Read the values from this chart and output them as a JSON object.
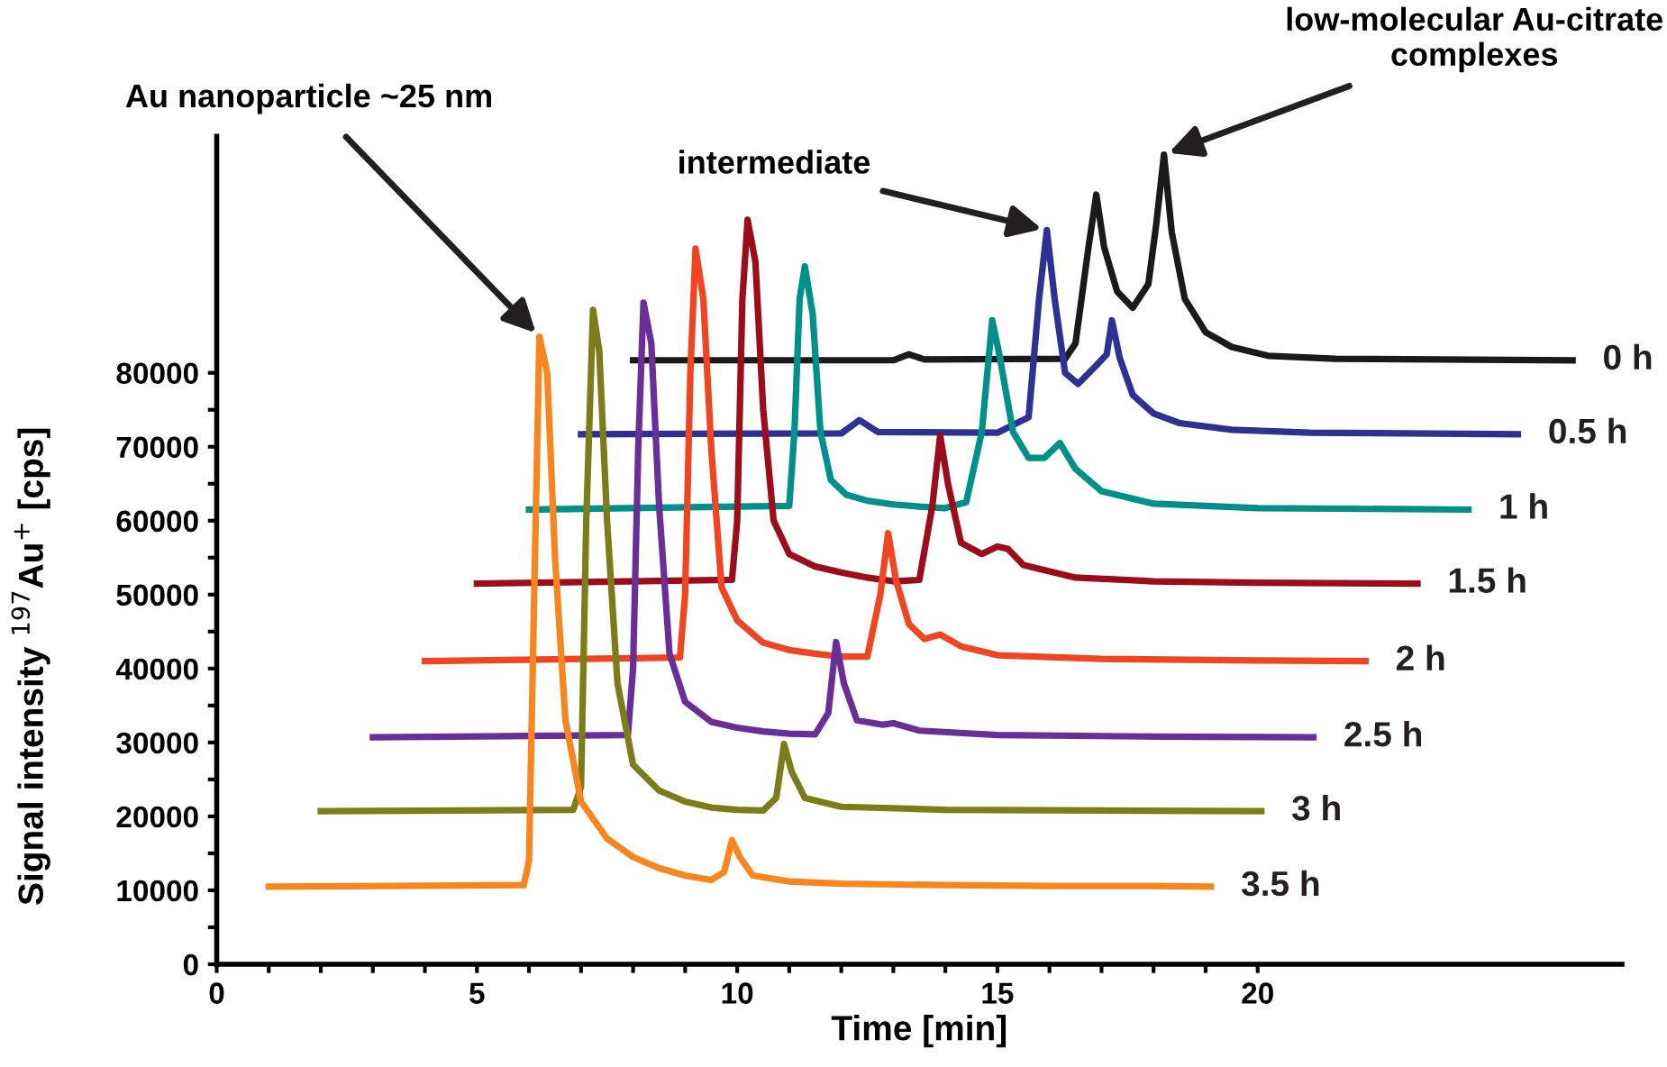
{
  "chart_data": {
    "type": "line",
    "xlabel": "Time [min]",
    "ylabel": "Signal intensity $^{197}$Au$^{+}$ [cps]",
    "xlim": [
      0,
      27
    ],
    "ylim": [
      0,
      112000
    ],
    "xticks": [
      0,
      {
        "value": 1,
        "label": null
      },
      {
        "value": 2,
        "label": null
      },
      {
        "value": 3,
        "label": null
      },
      {
        "value": 4,
        "label": null
      },
      5,
      {
        "value": 6,
        "label": null
      },
      {
        "value": 7,
        "label": null
      },
      {
        "value": 8,
        "label": null
      },
      {
        "value": 9,
        "label": null
      },
      10,
      {
        "value": 11,
        "label": null
      },
      {
        "value": 12,
        "label": null
      },
      {
        "value": 13,
        "label": null
      },
      {
        "value": 14,
        "label": null
      },
      15,
      {
        "value": 16,
        "label": null
      },
      {
        "value": 17,
        "label": null
      },
      {
        "value": 18,
        "label": null
      },
      {
        "value": 19,
        "label": null
      },
      20
    ],
    "yticks": [
      0,
      {
        "value": 5000,
        "label": null
      },
      10000,
      {
        "value": 15000,
        "label": null
      },
      20000,
      {
        "value": 25000,
        "label": null
      },
      30000,
      {
        "value": 35000,
        "label": null
      },
      40000,
      {
        "value": 45000,
        "label": null
      },
      50000,
      {
        "value": 55000,
        "label": null
      },
      60000,
      {
        "value": 65000,
        "label": null
      },
      70000,
      {
        "value": 75000,
        "label": null
      },
      80000
    ],
    "grid": false,
    "legend": false,
    "marker": "none",
    "line_style": "solid",
    "series": [
      {
        "name": "0 h",
        "color": "#1a1a1a",
        "x": [
          8,
          13.0,
          13.3,
          13.6,
          16.3,
          16.5,
          16.75,
          16.9,
          17.05,
          17.3,
          17.6,
          17.9,
          18.05,
          18.2,
          18.35,
          18.6,
          19.0,
          19.5,
          20.2,
          21.5,
          26.05
        ],
        "values": [
          81700,
          81700,
          82500,
          81800,
          81900,
          84000,
          97000,
          104100,
          97000,
          91000,
          88800,
          92000,
          100000,
          109500,
          99000,
          90000,
          85500,
          83500,
          82300,
          81900,
          81700
        ]
      },
      {
        "name": "0.5 h",
        "color": "#2e3192",
        "x": [
          7,
          12.0,
          12.35,
          12.7,
          15.0,
          15.6,
          15.8,
          15.95,
          16.1,
          16.3,
          16.55,
          16.9,
          17.1,
          17.2,
          17.35,
          17.6,
          18.0,
          18.5,
          19.5,
          21,
          25.0
        ],
        "values": [
          71700,
          71800,
          73600,
          72000,
          71900,
          74000,
          90000,
          99300,
          90000,
          80000,
          78500,
          81000,
          82500,
          87100,
          82000,
          77000,
          74500,
          73200,
          72300,
          71900,
          71700
        ]
      },
      {
        "name": "1 h",
        "color": "#009089",
        "x": [
          6,
          11.0,
          11.1,
          11.2,
          11.3,
          11.45,
          11.6,
          11.8,
          12.1,
          12.5,
          13.0,
          13.5,
          14.0,
          14.4,
          14.7,
          14.9,
          15.05,
          15.3,
          15.6,
          15.9,
          16.2,
          16.5,
          17.0,
          18,
          20,
          24.05
        ],
        "values": [
          61500,
          62000,
          72000,
          90000,
          94400,
          88000,
          72000,
          65500,
          63500,
          62700,
          62200,
          61900,
          61700,
          62500,
          72000,
          87100,
          82000,
          72000,
          68500,
          68500,
          70500,
          67000,
          64000,
          62300,
          61700,
          61500
        ]
      },
      {
        "name": "1.5 h",
        "color": "#9b0d1a",
        "x": [
          5,
          9.9,
          10.0,
          10.1,
          10.2,
          10.35,
          10.5,
          10.7,
          11.0,
          11.5,
          12.0,
          12.5,
          13.0,
          13.5,
          13.75,
          13.9,
          14.05,
          14.3,
          14.7,
          15.0,
          15.2,
          15.5,
          16.5,
          18,
          20,
          23.07
        ],
        "values": [
          51500,
          52000,
          60000,
          90000,
          100700,
          95000,
          75000,
          60000,
          55500,
          53800,
          53000,
          52300,
          51800,
          52000,
          62000,
          71500,
          65000,
          57000,
          55500,
          56500,
          56200,
          54000,
          52300,
          51800,
          51600,
          51500
        ]
      },
      {
        "name": "2 h",
        "color": "#f04523",
        "x": [
          4,
          8.9,
          9.0,
          9.1,
          9.2,
          9.35,
          9.5,
          9.7,
          10.0,
          10.5,
          11.0,
          11.5,
          12.0,
          12.5,
          12.75,
          12.9,
          13.05,
          13.3,
          13.6,
          13.9,
          14.3,
          15,
          17,
          20,
          22.07
        ],
        "values": [
          41000,
          41500,
          50000,
          80000,
          96800,
          90000,
          70000,
          51000,
          46500,
          43500,
          42500,
          42000,
          41600,
          41600,
          50000,
          58300,
          52000,
          46000,
          44000,
          44600,
          43000,
          41800,
          41300,
          41100,
          41000
        ]
      },
      {
        "name": "2.5 h",
        "color": "#6a2f96",
        "x": [
          3,
          7.9,
          8.0,
          8.1,
          8.2,
          8.35,
          8.5,
          8.7,
          9.0,
          9.5,
          10.0,
          10.5,
          11.0,
          11.5,
          11.75,
          11.9,
          12.05,
          12.3,
          12.8,
          13.0,
          13.5,
          15,
          18,
          21.07
        ],
        "values": [
          30700,
          31000,
          40000,
          70000,
          89500,
          84000,
          62000,
          42000,
          35500,
          32800,
          32000,
          31500,
          31200,
          31100,
          34000,
          43600,
          38000,
          33000,
          32400,
          32600,
          31600,
          31000,
          30800,
          30700
        ]
      },
      {
        "name": "3 h",
        "color": "#7a7d1a",
        "x": [
          2,
          6.85,
          7.0,
          7.1,
          7.23,
          7.35,
          7.5,
          7.7,
          8.0,
          8.5,
          9.0,
          9.5,
          10.0,
          10.5,
          10.75,
          10.9,
          11.05,
          11.3,
          12,
          14,
          17,
          20.07
        ],
        "values": [
          20700,
          20900,
          24000,
          60000,
          88500,
          83000,
          60000,
          38000,
          27000,
          23500,
          22000,
          21200,
          20900,
          20800,
          22500,
          29800,
          26000,
          22500,
          21300,
          20900,
          20800,
          20700
        ]
      },
      {
        "name": "3.5 h",
        "color": "#f7861f",
        "x": [
          1,
          5.9,
          6.0,
          6.1,
          6.2,
          6.35,
          6.5,
          6.7,
          7.0,
          7.5,
          8.0,
          8.5,
          9.0,
          9.5,
          9.75,
          9.9,
          10.05,
          10.3,
          11,
          12,
          14,
          16,
          18,
          19.1
        ],
        "values": [
          10500,
          10700,
          14000,
          50000,
          84900,
          80000,
          55000,
          33000,
          22000,
          17000,
          14500,
          13000,
          12000,
          11400,
          12500,
          16800,
          14500,
          12000,
          11200,
          10900,
          10700,
          10600,
          10600,
          10500
        ]
      }
    ],
    "annotations": [
      {
        "text": "Au nanoparticle ~25 nm",
        "x": 6.2,
        "y": 84900
      },
      {
        "text": "intermediate",
        "x": 15.95,
        "y": 99300
      },
      {
        "text": "low-molecular Au-citrate\ncomplexes",
        "x": 18.2,
        "y": 109500
      }
    ]
  }
}
